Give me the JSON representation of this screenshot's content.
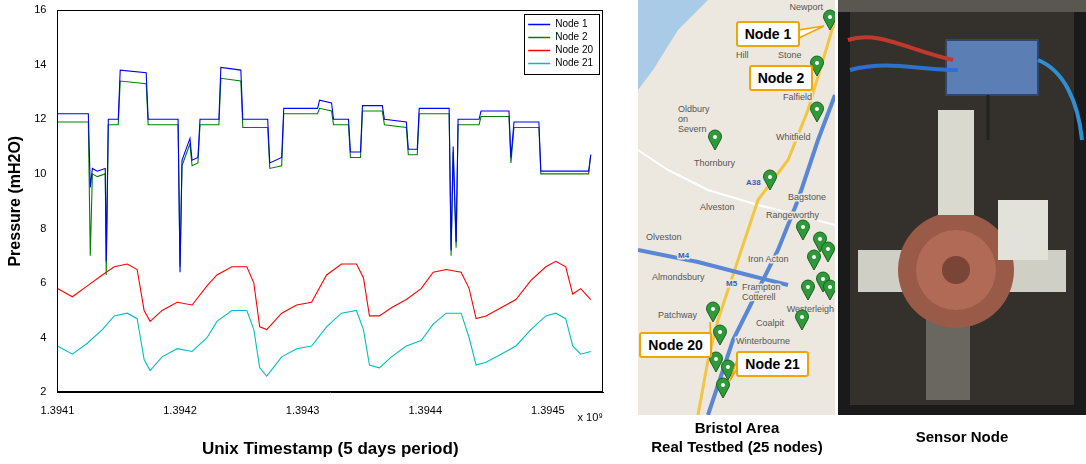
{
  "chart_data": {
    "type": "line",
    "x_label": "Unix Timestamp (5 days period)",
    "y_label": "Pressure (mH2O)",
    "annotation": "x 10⁹",
    "xlim": [
      1394100000,
      1394545000
    ],
    "xticks": [
      {
        "value": 1394100000,
        "label": "1.3941"
      },
      {
        "value": 1394200000,
        "label": "1.3942"
      },
      {
        "value": 1394300000,
        "label": "1.3943"
      },
      {
        "value": 1394400000,
        "label": "1.3944"
      },
      {
        "value": 1394500000,
        "label": "1.3945"
      }
    ],
    "ylim": [
      2,
      16
    ],
    "yticks": [
      2,
      4,
      6,
      8,
      10,
      12,
      14,
      16
    ],
    "grid": false,
    "legend": "upper right",
    "series": [
      {
        "name": "Node 1",
        "color": "#0000ff",
        "x": [
          1394100000,
          1394125200,
          1394126800,
          1394128500,
          1394132500,
          1394139000,
          1394139800,
          1394141500,
          1394149600,
          1394151200,
          1394172400,
          1394174000,
          1394198400,
          1394200000,
          1394201600,
          1394208100,
          1394209800,
          1394214600,
          1394216300,
          1394231700,
          1394233300,
          1394249600,
          1394251200,
          1394271500,
          1394273200,
          1394282900,
          1394284600,
          1394312200,
          1394313800,
          1394323600,
          1394325200,
          1394337400,
          1394339000,
          1394347200,
          1394348800,
          1394365000,
          1394366700,
          1394384600,
          1394386200,
          1394393500,
          1394395100,
          1394419500,
          1394421100,
          1394422800,
          1394425200,
          1394426800,
          1394443900,
          1394445500,
          1394468300,
          1394469900,
          1394472400,
          1394492700,
          1394494300,
          1394533300,
          1394535000
        ],
        "values": [
          12.2,
          12.2,
          9.5,
          10.2,
          10.1,
          10.2,
          6.8,
          12.0,
          12.0,
          13.8,
          13.7,
          12.0,
          12.0,
          6.4,
          10.5,
          11.3,
          10.5,
          10.6,
          12.0,
          12.0,
          13.9,
          13.8,
          12.0,
          12.0,
          10.4,
          10.6,
          12.4,
          12.4,
          12.7,
          12.6,
          12.0,
          12.0,
          10.8,
          10.8,
          12.5,
          12.5,
          12.0,
          11.9,
          10.9,
          10.9,
          12.4,
          12.4,
          7.2,
          11.0,
          7.5,
          12.0,
          12.0,
          12.3,
          12.3,
          10.6,
          11.9,
          11.9,
          10.1,
          10.1,
          10.7
        ]
      },
      {
        "name": "Node 2",
        "color": "#008000",
        "x": [
          1394100000,
          1394125200,
          1394126800,
          1394128500,
          1394132500,
          1394139000,
          1394139800,
          1394141500,
          1394149600,
          1394151200,
          1394172400,
          1394174000,
          1394198400,
          1394200000,
          1394201600,
          1394208100,
          1394209800,
          1394214600,
          1394216300,
          1394231700,
          1394233300,
          1394249600,
          1394251200,
          1394271500,
          1394273200,
          1394282900,
          1394284600,
          1394312200,
          1394313800,
          1394323600,
          1394325200,
          1394337400,
          1394339000,
          1394347200,
          1394348800,
          1394365000,
          1394366700,
          1394384600,
          1394386200,
          1394393500,
          1394395100,
          1394419500,
          1394421100,
          1394422800,
          1394425200,
          1394426800,
          1394443900,
          1394445500,
          1394468300,
          1394469900,
          1394472400,
          1394492700,
          1394494300,
          1394533300,
          1394535000
        ],
        "values": [
          11.9,
          11.9,
          7.0,
          10.0,
          9.9,
          10.0,
          6.3,
          11.8,
          11.8,
          13.4,
          13.3,
          11.8,
          11.8,
          6.6,
          10.3,
          11.1,
          10.3,
          10.4,
          11.8,
          11.8,
          13.5,
          13.4,
          11.7,
          11.7,
          10.2,
          10.3,
          12.2,
          12.2,
          12.4,
          12.3,
          11.8,
          11.8,
          10.6,
          10.6,
          12.3,
          12.3,
          11.8,
          11.7,
          10.7,
          10.7,
          12.2,
          12.2,
          7.0,
          10.8,
          7.3,
          11.8,
          11.8,
          12.1,
          12.1,
          10.4,
          11.7,
          11.7,
          10.0,
          10.0,
          10.7
        ]
      },
      {
        "name": "Node 20",
        "color": "#ff0000",
        "x": [
          1394100000,
          1394112200,
          1394124400,
          1394136600,
          1394146300,
          1394156900,
          1394165000,
          1394170700,
          1394175600,
          1394185400,
          1394197600,
          1394209800,
          1394222000,
          1394230100,
          1394242300,
          1394254500,
          1394260200,
          1394265000,
          1394270700,
          1394282900,
          1394295100,
          1394307300,
          1394319500,
          1394331700,
          1394343900,
          1394349600,
          1394354500,
          1394362600,
          1394372400,
          1394384600,
          1394396700,
          1394406500,
          1394417100,
          1394429300,
          1394435800,
          1394441500,
          1394449600,
          1394461800,
          1394474000,
          1394486200,
          1394498400,
          1394506500,
          1394514600,
          1394520300,
          1394526800,
          1394535000
        ],
        "values": [
          5.8,
          5.5,
          5.9,
          6.3,
          6.6,
          6.7,
          6.5,
          5.0,
          4.6,
          5.0,
          5.3,
          5.2,
          5.9,
          6.3,
          6.6,
          6.6,
          6.0,
          4.4,
          4.3,
          4.9,
          5.2,
          5.3,
          6.3,
          6.7,
          6.7,
          6.2,
          4.8,
          4.8,
          5.1,
          5.4,
          5.8,
          6.4,
          6.5,
          6.4,
          5.8,
          4.7,
          4.8,
          5.1,
          5.4,
          6.1,
          6.6,
          6.8,
          6.6,
          5.6,
          5.8,
          5.4
        ]
      },
      {
        "name": "Node 21",
        "color": "#00bfbf",
        "x": [
          1394100000,
          1394112200,
          1394124400,
          1394136600,
          1394146300,
          1394156900,
          1394165000,
          1394170700,
          1394175600,
          1394185400,
          1394197600,
          1394209800,
          1394222000,
          1394230100,
          1394242300,
          1394254500,
          1394260200,
          1394265000,
          1394270700,
          1394282900,
          1394295100,
          1394307300,
          1394319500,
          1394331700,
          1394343900,
          1394349600,
          1394354500,
          1394362600,
          1394372400,
          1394384600,
          1394396700,
          1394406500,
          1394417100,
          1394429300,
          1394435800,
          1394441500,
          1394449600,
          1394461800,
          1394474000,
          1394486200,
          1394498400,
          1394506500,
          1394514600,
          1394520300,
          1394526800,
          1394535000
        ],
        "values": [
          3.7,
          3.4,
          3.8,
          4.3,
          4.8,
          4.9,
          4.7,
          3.2,
          2.8,
          3.3,
          3.6,
          3.5,
          4.0,
          4.6,
          5.0,
          5.0,
          4.3,
          2.9,
          2.6,
          3.3,
          3.6,
          3.7,
          4.4,
          4.9,
          5.0,
          4.3,
          3.0,
          2.9,
          3.3,
          3.7,
          3.9,
          4.5,
          4.9,
          4.9,
          4.0,
          3.0,
          3.1,
          3.4,
          3.7,
          4.3,
          4.8,
          4.9,
          4.7,
          3.7,
          3.4,
          3.5
        ]
      }
    ]
  },
  "map": {
    "caption": [
      "Bristol Area",
      "Real Testbed (25 nodes)"
    ],
    "node_labels": [
      "Node 1",
      "Node 2",
      "Node 20",
      "Node 21"
    ],
    "place_names": [
      "Newport",
      "Hill",
      "Stone",
      "Falfield",
      "Oldbury on Severn",
      "Whitfield",
      "Thornbury",
      "Alveston",
      "Bagstone",
      "Olveston",
      "Rangeworthy",
      "Iron Acton",
      "Almondsbury",
      "Frampton Cotterell",
      "Patchway",
      "Westerleigh",
      "Coalpit",
      "Winterbourne"
    ],
    "road_labels": [
      "A38",
      "M5",
      "M4"
    ]
  },
  "photo": {
    "caption": "Sensor Node"
  }
}
